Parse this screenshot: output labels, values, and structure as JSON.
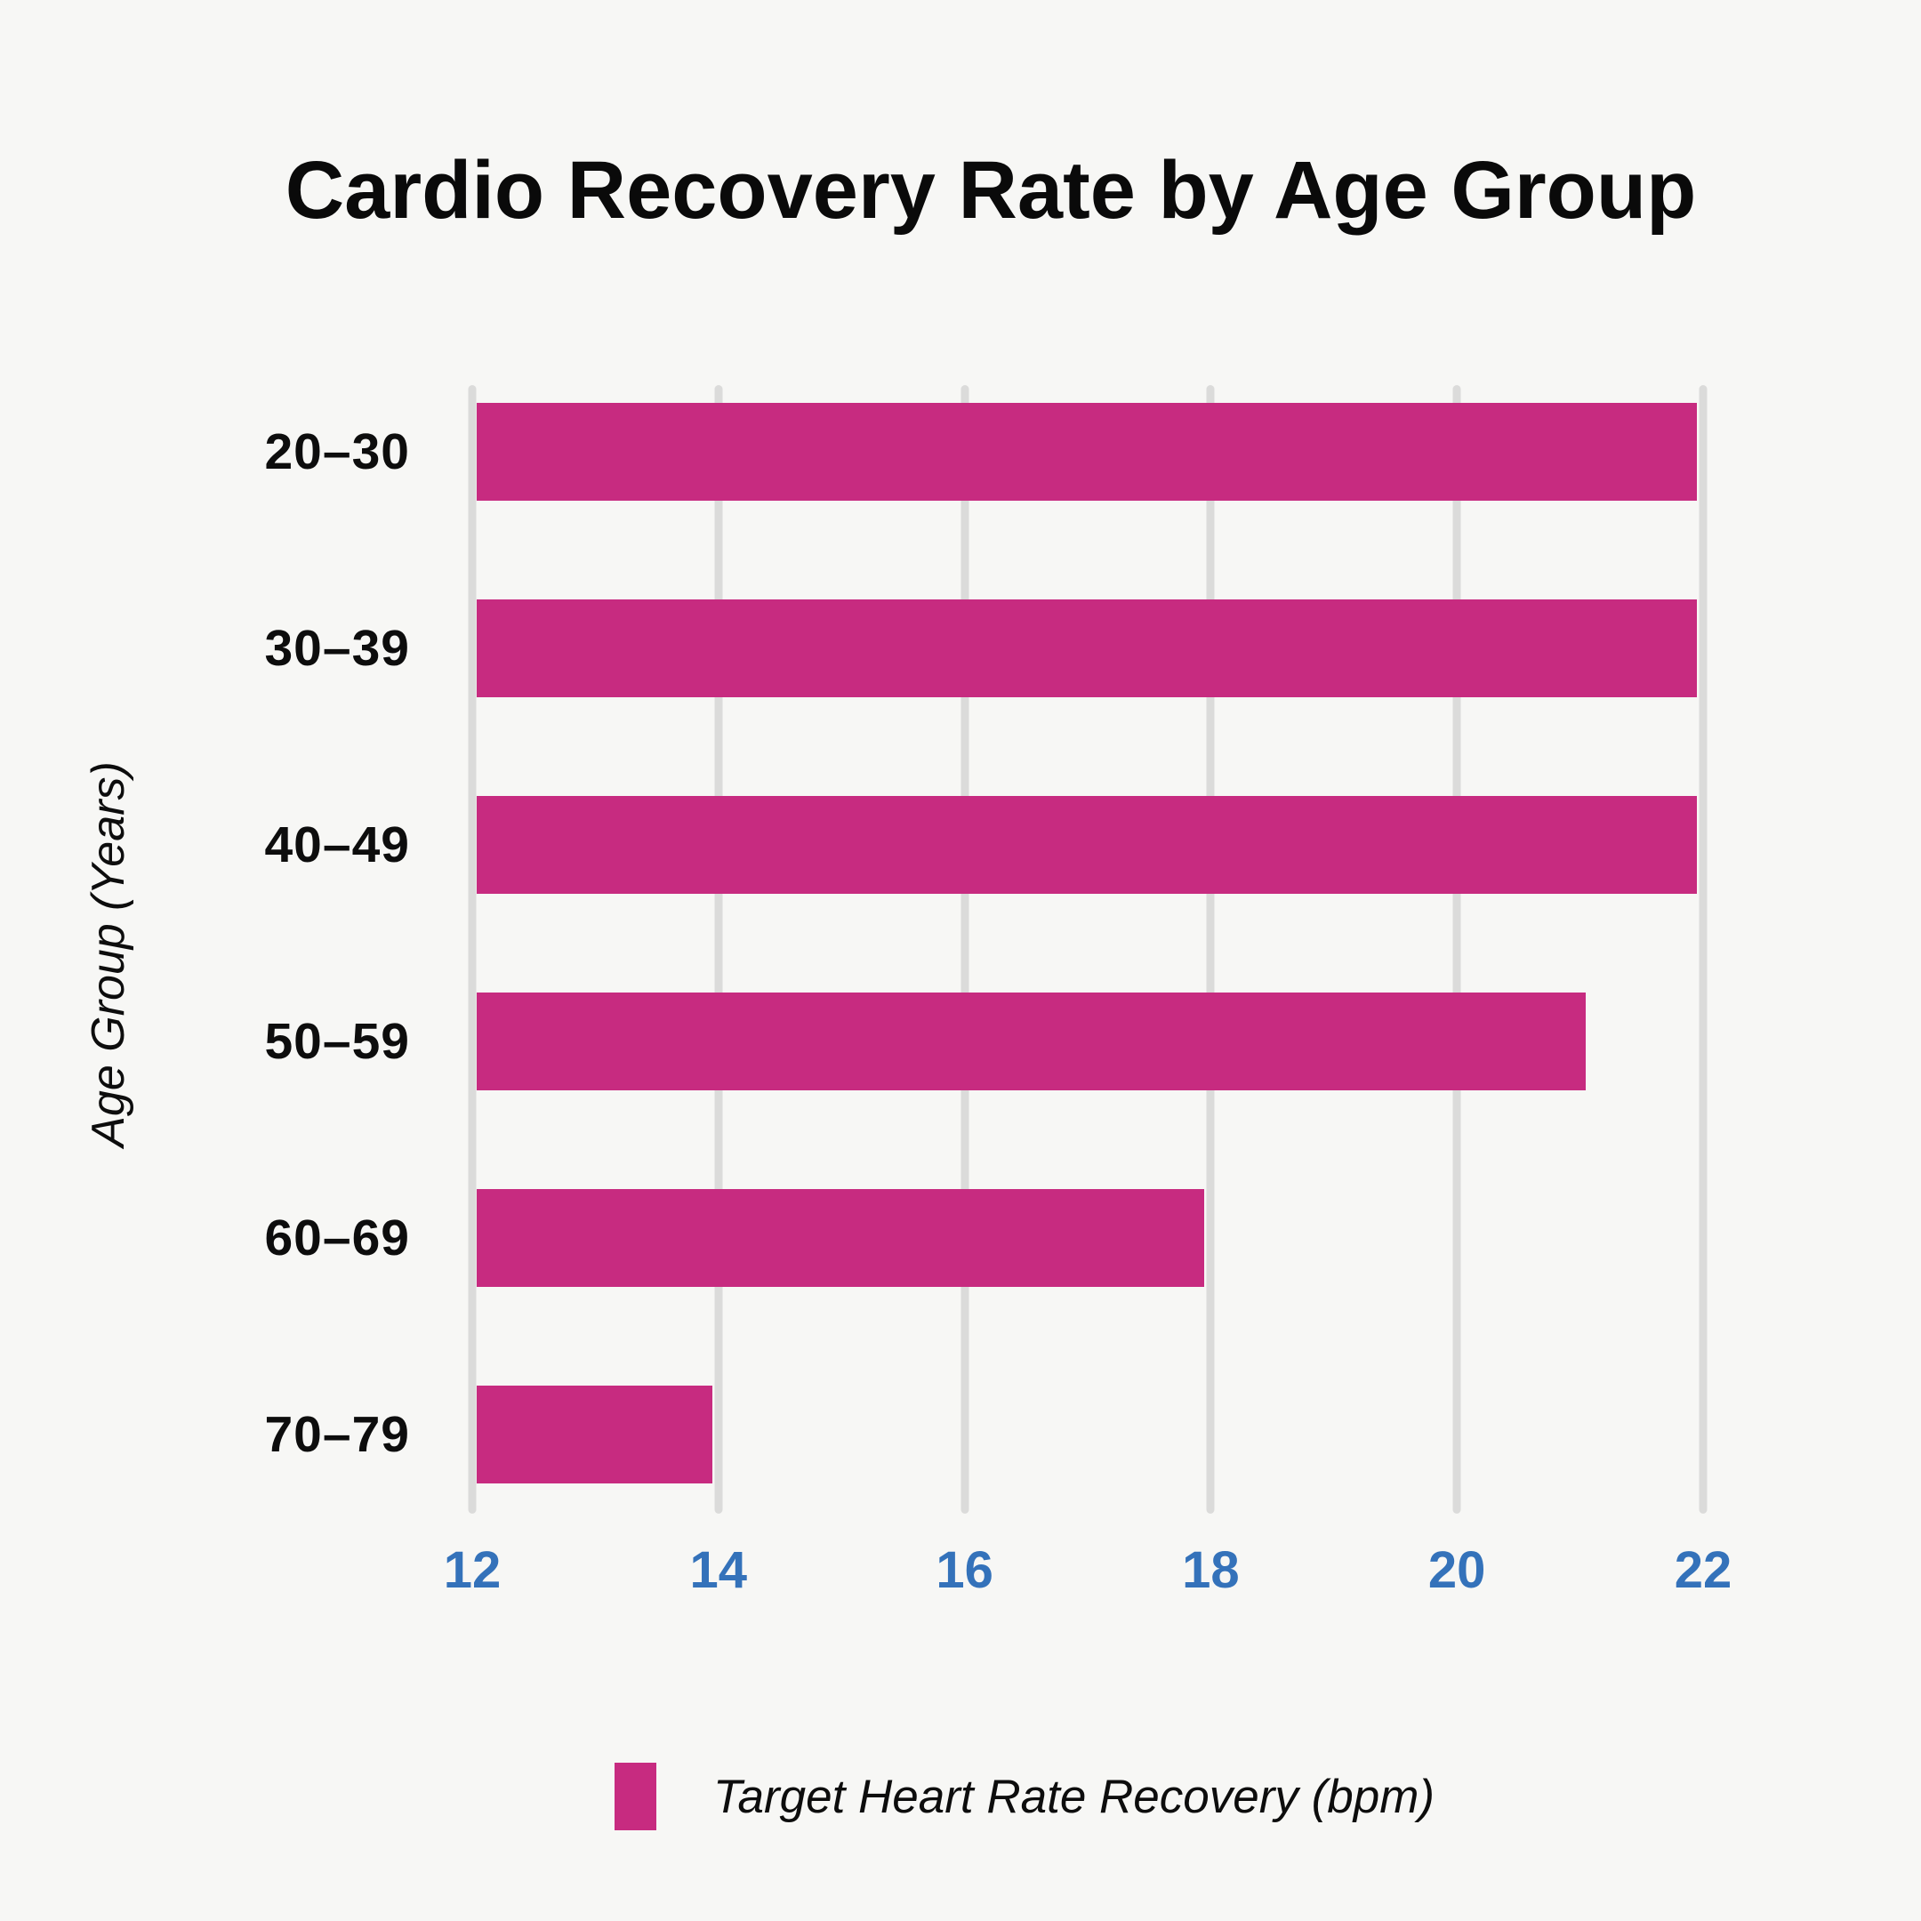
{
  "page": {
    "background": "#F7F7F5"
  },
  "chart": {
    "title": "Cardio Recovery Rate by Age Group",
    "y_axis_title": "Age Group (Years)",
    "legend": {
      "label": "Target Heart Rate Recovery (bpm)"
    }
  },
  "chart_data": {
    "type": "bar",
    "orientation": "horizontal",
    "title": "Cardio Recovery Rate by Age Group",
    "categories": [
      "20–30",
      "30–39",
      "40–49",
      "50–59",
      "60–69",
      "70–79"
    ],
    "series": [
      {
        "name": "Target Heart Rate Recovery (bpm)",
        "values": [
          22,
          22,
          22,
          21.1,
          18,
          14
        ]
      }
    ],
    "xlabel": "",
    "ylabel": "Age Group (Years)",
    "xlim": [
      12,
      22
    ],
    "xticks": [
      12,
      14,
      16,
      18,
      20,
      22
    ],
    "grid": true,
    "legend_position": "bottom",
    "colors": {
      "bar": "#C72B80",
      "tick_label": "#3472BA",
      "gridline": "#DBDBDA",
      "title_text": "#0A0A0A",
      "axis_text": "#0D0D0D",
      "background": "#F7F7F5"
    }
  }
}
